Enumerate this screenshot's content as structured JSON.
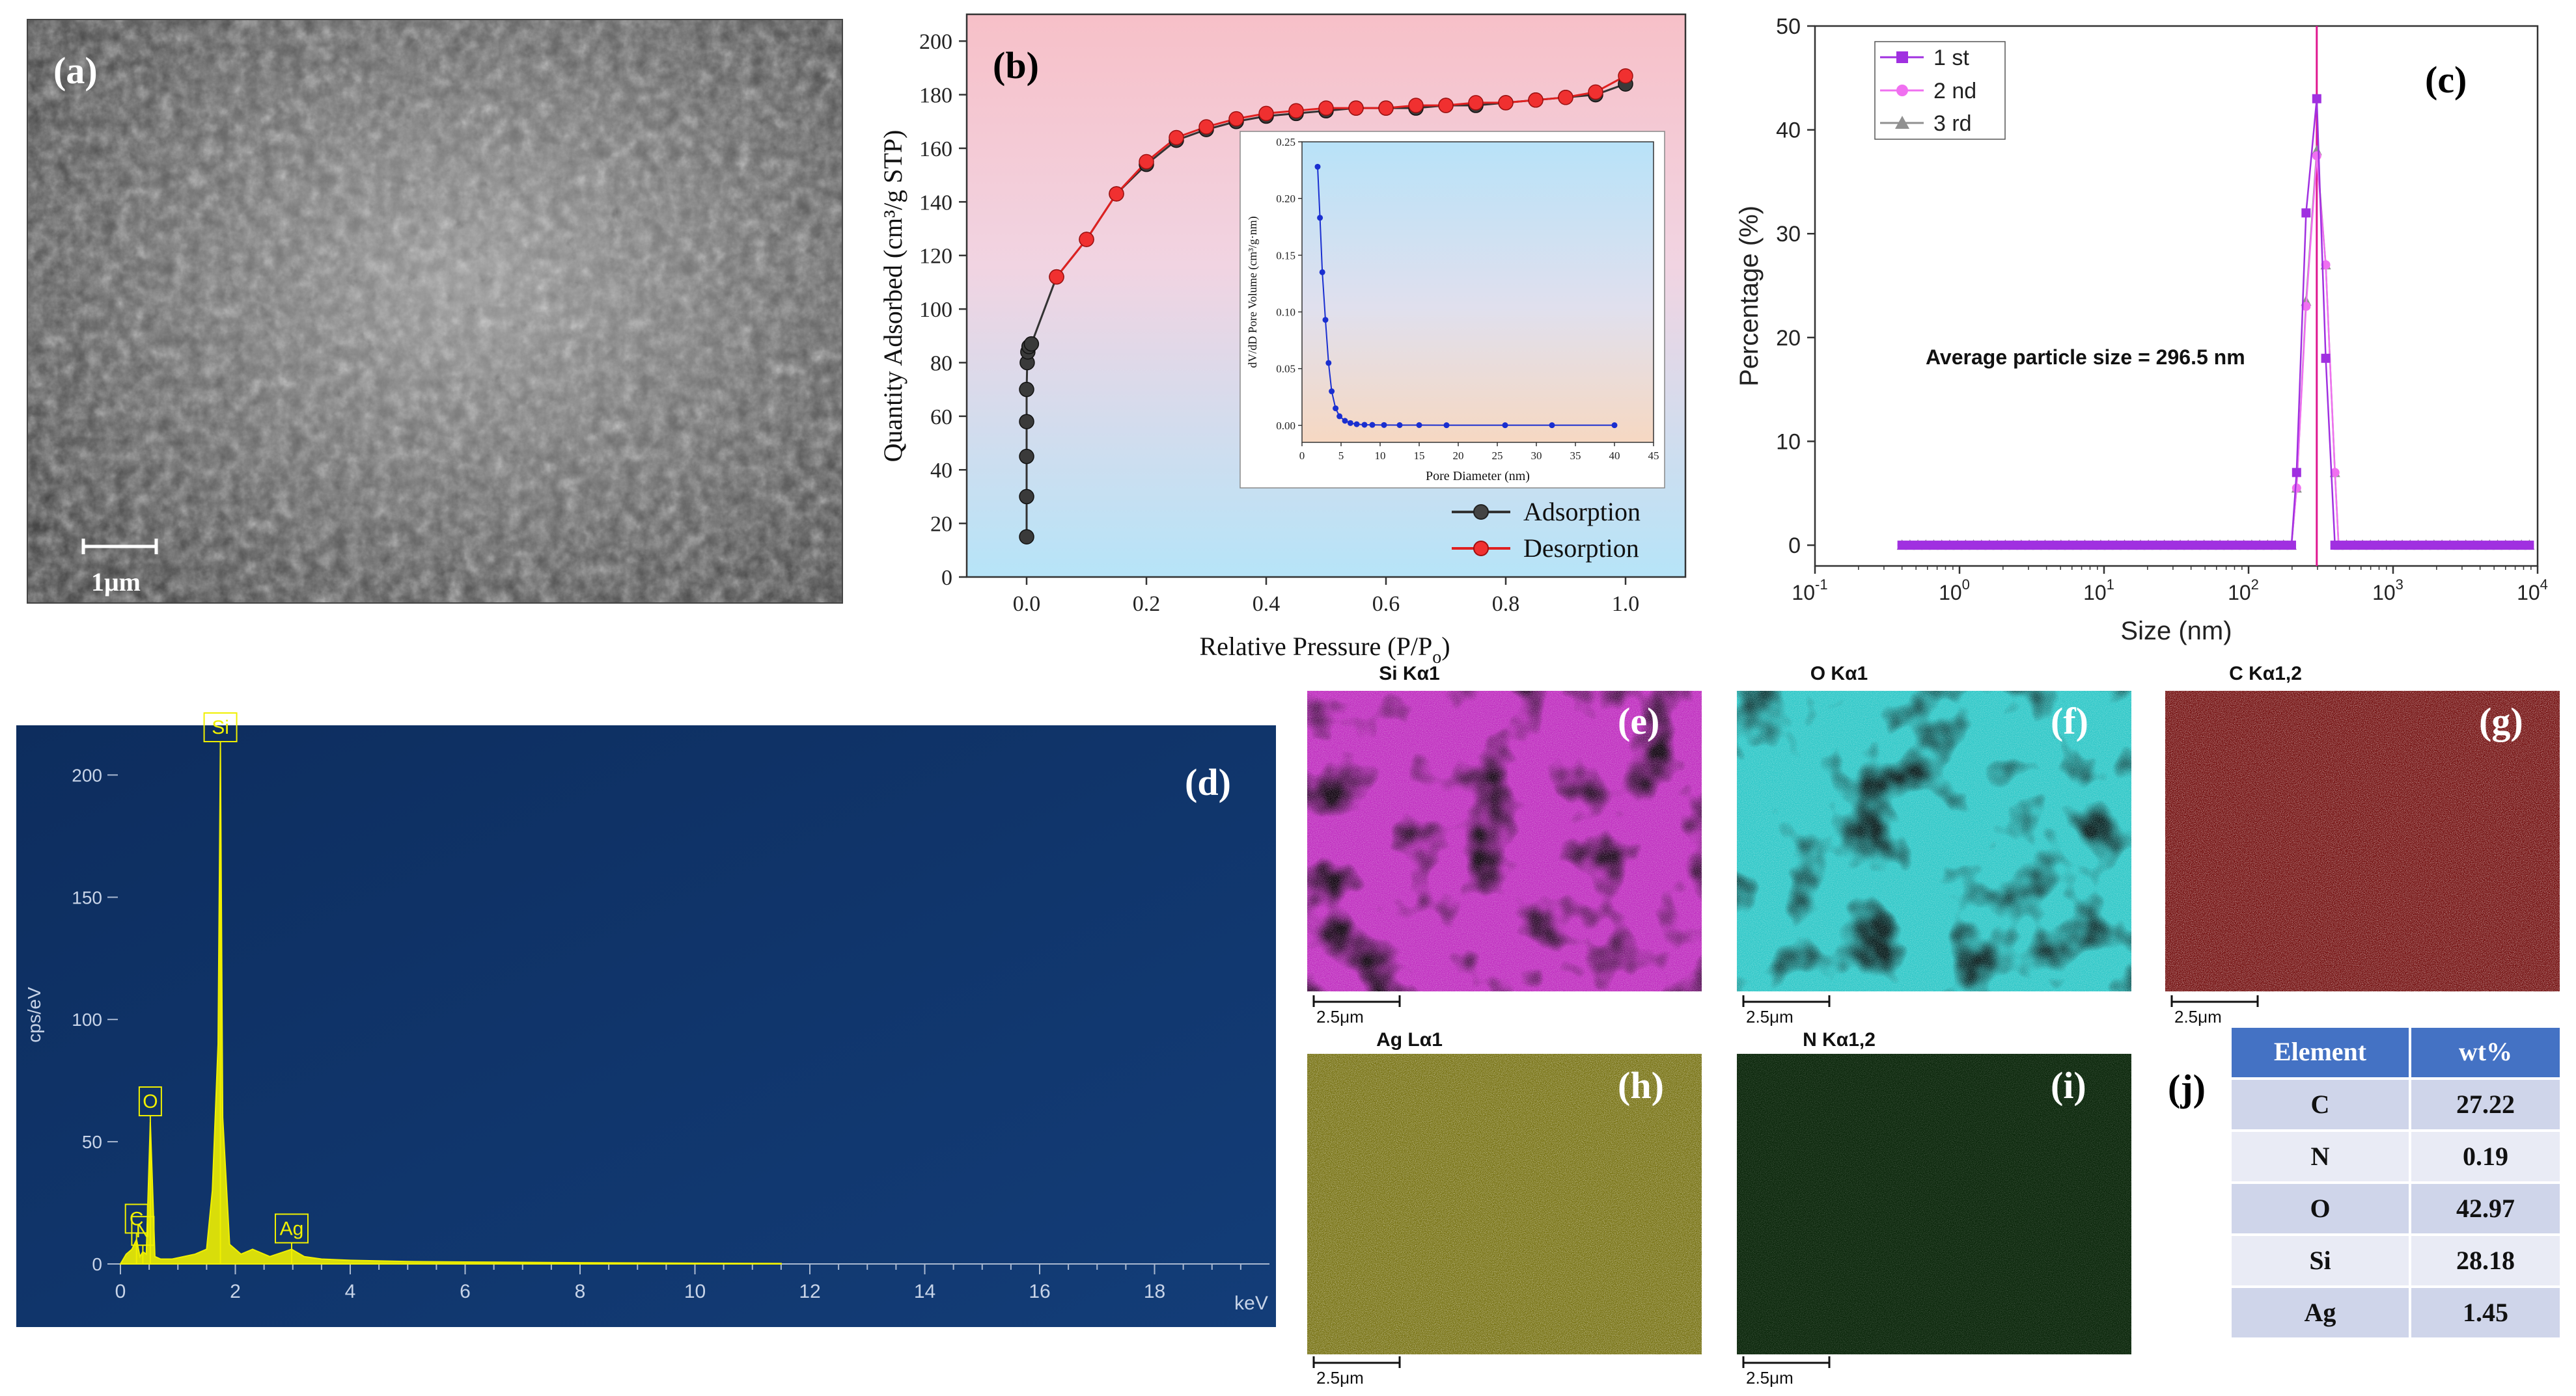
{
  "panels": {
    "a": {
      "letter": "(a)",
      "scalebar": "1μm"
    },
    "b": {
      "letter": "(b)"
    },
    "c": {
      "letter": "(c)"
    },
    "d": {
      "letter": "(d)"
    },
    "e": {
      "letter": "(e)",
      "title": "Si Kα1",
      "scalebar": "2.5μm",
      "color": "#c030c0"
    },
    "f": {
      "letter": "(f)",
      "title": "O Kα1",
      "scalebar": "2.5μm",
      "color": "#30c8c8"
    },
    "g": {
      "letter": "(g)",
      "title": "C Kα1,2",
      "scalebar": "2.5μm",
      "color": "#d01818"
    },
    "h": {
      "letter": "(h)",
      "title": "Ag Lα1",
      "scalebar": "2.5μm",
      "color": "#d8d020"
    },
    "i": {
      "letter": "(i)",
      "title": "N Kα1,2",
      "scalebar": "2.5μm",
      "color": "#30b030"
    },
    "j": {
      "letter": "(j)"
    }
  },
  "chart_data": [
    {
      "id": "b",
      "type": "line",
      "xlabel": "Relative Pressure (P/P",
      "xlabel_sub": "o",
      "xlabel_end": ")",
      "ylabel": "Quantity Adsorbed (cm³/g STP)",
      "xlim": [
        -0.1,
        1.1
      ],
      "ylim": [
        0,
        210
      ],
      "xticks": [
        "0.0",
        "0.2",
        "0.4",
        "0.6",
        "0.8",
        "1.0"
      ],
      "yticks": [
        "0",
        "20",
        "40",
        "60",
        "80",
        "100",
        "120",
        "140",
        "160",
        "180",
        "200"
      ],
      "legend": "bottom-right",
      "series": [
        {
          "name": "Adsorption",
          "color": "#333333",
          "x": [
            0.0,
            0.0,
            0.0,
            0.0,
            0.0,
            0.001,
            0.002,
            0.004,
            0.008,
            0.05,
            0.1,
            0.15,
            0.2,
            0.25,
            0.3,
            0.35,
            0.4,
            0.45,
            0.5,
            0.55,
            0.6,
            0.65,
            0.7,
            0.75,
            0.8,
            0.85,
            0.9,
            0.95,
            1.0
          ],
          "y": [
            15,
            30,
            45,
            58,
            70,
            80,
            84,
            86,
            87,
            112,
            126,
            143,
            154,
            163,
            167,
            170,
            172,
            173,
            174,
            175,
            175,
            175,
            176,
            176,
            177,
            178,
            179,
            180,
            184
          ]
        },
        {
          "name": "Desorption",
          "color": "#e02020",
          "x": [
            0.05,
            0.1,
            0.15,
            0.2,
            0.25,
            0.3,
            0.35,
            0.4,
            0.45,
            0.5,
            0.55,
            0.6,
            0.65,
            0.7,
            0.75,
            0.8,
            0.85,
            0.9,
            0.95,
            1.0
          ],
          "y": [
            112,
            126,
            143,
            155,
            164,
            168,
            171,
            173,
            174,
            175,
            175,
            175,
            176,
            176,
            177,
            177,
            178,
            179,
            181,
            187
          ]
        }
      ]
    },
    {
      "id": "b-inset",
      "type": "line",
      "xlabel": "Pore Diameter (nm)",
      "ylabel": "dV/dD Pore Volume (cm³/g·nm)",
      "xlim": [
        0,
        45
      ],
      "ylim": [
        -0.015,
        0.25
      ],
      "xticks": [
        "0",
        "5",
        "10",
        "15",
        "20",
        "25",
        "30",
        "35",
        "40",
        "45"
      ],
      "yticks": [
        "0.00",
        "0.05",
        "0.10",
        "0.15",
        "0.20",
        "0.25"
      ],
      "series": [
        {
          "color": "#1a2fd0",
          "x": [
            2,
            2.3,
            2.6,
            3,
            3.4,
            3.8,
            4.3,
            4.8,
            5.5,
            6.2,
            7,
            8,
            9,
            10.5,
            12.5,
            15,
            18.5,
            26,
            32,
            40
          ],
          "y": [
            0.228,
            0.183,
            0.135,
            0.093,
            0.055,
            0.03,
            0.015,
            0.008,
            0.004,
            0.002,
            0.001,
            0.0005,
            0.0004,
            0.0003,
            0.0002,
            0.0002,
            0.0001,
            0.0001,
            0.0001,
            0.0001
          ]
        }
      ]
    },
    {
      "id": "c",
      "type": "line",
      "xscale": "log",
      "xlabel": "Size (nm)",
      "ylabel": "Percentage (%)",
      "xlim": [
        0.1,
        10000
      ],
      "ylim": [
        -2,
        50
      ],
      "xticks": [
        "10",
        "10",
        "10",
        "10",
        "10",
        "10"
      ],
      "xtick_exp": [
        "-1",
        "0",
        "1",
        "2",
        "3",
        "4"
      ],
      "yticks": [
        "0",
        "10",
        "20",
        "30",
        "40",
        "50"
      ],
      "legend": "top-left",
      "annotation": "Average particle size = 296.5 nm",
      "vline": 296.5,
      "series": [
        {
          "name": "1 st",
          "color": "#a030e0",
          "marker": "square",
          "x": [
            215,
            250,
            296.5,
            342,
            396
          ],
          "y": [
            7,
            32,
            43,
            18,
            0
          ]
        },
        {
          "name": "2 nd",
          "color": "#f070f0",
          "marker": "circle",
          "x": [
            215,
            250,
            296.5,
            342,
            396
          ],
          "y": [
            5.5,
            23,
            37.5,
            27,
            7
          ]
        },
        {
          "name": "3 rd",
          "color": "#909090",
          "marker": "triangle",
          "x": [
            215,
            250,
            296.5,
            342,
            396
          ],
          "y": [
            5.5,
            23.5,
            38,
            27,
            7
          ]
        }
      ]
    },
    {
      "id": "d",
      "type": "line",
      "xlabel": "keV",
      "ylabel": "cps/eV",
      "xlim": [
        0,
        20
      ],
      "ylim": [
        0,
        215
      ],
      "xticks": [
        "0",
        "2",
        "4",
        "6",
        "8",
        "10",
        "12",
        "14",
        "16",
        "18"
      ],
      "yticks": [
        "0",
        "50",
        "100",
        "150",
        "200"
      ],
      "peak_labels": [
        {
          "label": "C",
          "x": 0.28,
          "y": 10
        },
        {
          "label": "N",
          "x": 0.39,
          "y": 5
        },
        {
          "label": "O",
          "x": 0.52,
          "y": 58
        },
        {
          "label": "Si",
          "x": 1.74,
          "y": 211
        },
        {
          "label": "Ag",
          "x": 2.98,
          "y": 6
        }
      ],
      "series": [
        {
          "color": "#f0f000",
          "x": [
            0,
            0.1,
            0.2,
            0.28,
            0.34,
            0.39,
            0.45,
            0.52,
            0.6,
            0.7,
            0.9,
            1.1,
            1.3,
            1.5,
            1.6,
            1.7,
            1.74,
            1.78,
            1.9,
            2.1,
            2.3,
            2.6,
            2.98,
            3.2,
            3.5,
            4,
            5,
            6,
            8,
            10,
            11.5
          ],
          "y": [
            0,
            4,
            6,
            10,
            3,
            5,
            4,
            58,
            3,
            2,
            2,
            3,
            4,
            6,
            30,
            90,
            211,
            60,
            8,
            4,
            6,
            3,
            6,
            3,
            2,
            1.5,
            1,
            0.8,
            0.5,
            0.3,
            0.2
          ]
        }
      ]
    },
    {
      "id": "j",
      "type": "table",
      "columns": [
        "Element",
        "wt%"
      ],
      "rows": [
        [
          "C",
          "27.22"
        ],
        [
          "N",
          "0.19"
        ],
        [
          "O",
          "42.97"
        ],
        [
          "Si",
          "28.18"
        ],
        [
          "Ag",
          "1.45"
        ]
      ]
    }
  ]
}
